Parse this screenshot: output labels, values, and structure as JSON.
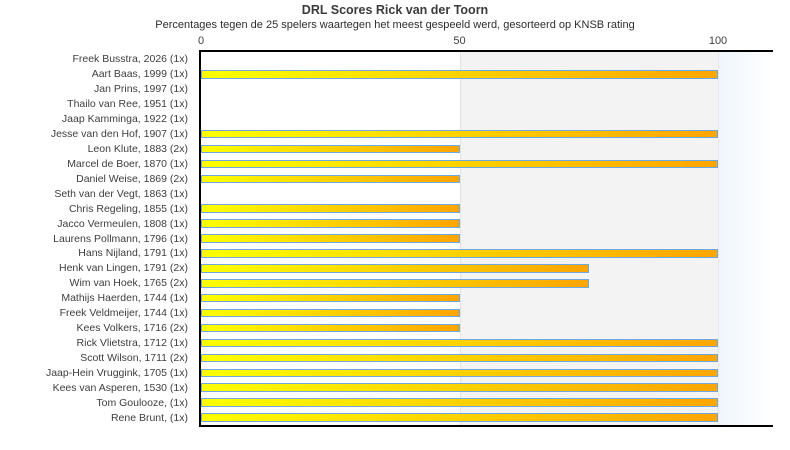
{
  "title": "DRL Scores Rick van der Toorn",
  "subtitle": "Percentages tegen de 25 spelers waartegen het meest gespeeld werd, gesorteerd op KNSB rating",
  "chart_data": {
    "type": "bar",
    "orientation": "horizontal",
    "title": "DRL Scores Rick van der Toorn",
    "subtitle": "Percentages tegen de 25 spelers waartegen het meest gespeeld werd, gesorteerd op KNSB rating",
    "xlabel": "",
    "ylabel": "",
    "xlim": [
      0,
      110.4
    ],
    "x_ticks": [
      0,
      50,
      100
    ],
    "grid": false,
    "legend": null,
    "categories": [
      "Freek Busstra, 2026 (1x)",
      "Aart Baas, 1999 (1x)",
      "Jan Prins, 1997 (1x)",
      "Thailo van Ree, 1951 (1x)",
      "Jaap Kamminga, 1922 (1x)",
      "Jesse van den Hof, 1907 (1x)",
      "Leon Klute, 1883 (2x)",
      "Marcel de Boer, 1870 (1x)",
      "Daniel Weise, 1869 (2x)",
      "Seth van der Vegt, 1863 (1x)",
      "Chris Regeling, 1855 (1x)",
      "Jacco Vermeulen, 1808 (1x)",
      "Laurens Pollmann, 1796 (1x)",
      "Hans Nijland, 1791 (1x)",
      "Henk van Lingen, 1791 (2x)",
      "Wim van Hoek, 1765 (2x)",
      "Mathijs Haerden, 1744 (1x)",
      "Freek Veldmeijer, 1744 (1x)",
      "Kees Volkers, 1716 (2x)",
      "Rick Vlietstra, 1712 (1x)",
      "Scott Wilson, 1711 (2x)",
      "Jaap-Hein Vruggink, 1705 (1x)",
      "Kees van Asperen, 1530 (1x)",
      "Tom Goulooze,  (1x)",
      "Rene Brunt,  (1x)"
    ],
    "values": [
      0,
      100,
      0,
      0,
      0,
      100,
      50,
      100,
      50,
      0,
      50,
      50,
      50,
      100,
      75,
      75,
      50,
      50,
      50,
      100,
      100,
      100,
      100,
      100,
      100
    ],
    "bands": [
      {
        "from": 50,
        "to": 100,
        "fill": "#f3f3f3",
        "edge": "#e2e2e2"
      },
      {
        "from": 100,
        "to": 110.4,
        "fill_gradient": [
          "#f0f6fc",
          "#ffffff"
        ],
        "edge": "#e9e9e9"
      }
    ],
    "colors": {
      "bar_gradient_start": "#ffff00",
      "bar_gradient_end": "#ffa500",
      "bar_border": "#6fa8dc",
      "plot_border": "#000000",
      "band_fill": "#f3f3f3",
      "text": "#3e3e3e"
    }
  }
}
